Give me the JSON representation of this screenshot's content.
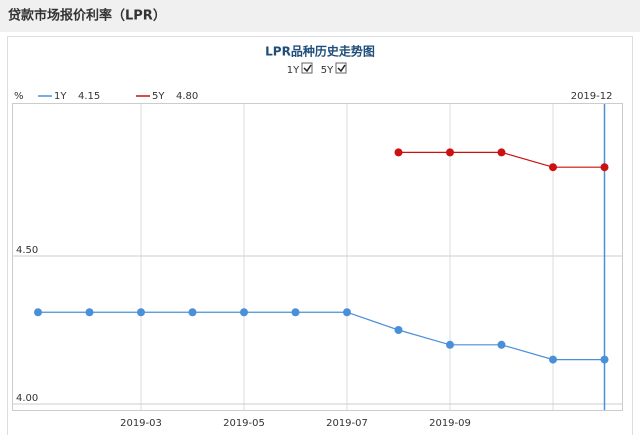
{
  "header": {
    "title": "贷款市场报价利率（LPR）"
  },
  "chart_data": {
    "type": "line",
    "title": "LPR品种历史走势图",
    "y_label": "%",
    "categories": [
      null,
      null,
      "2019-03",
      null,
      "2019-05",
      null,
      "2019-07",
      null,
      "2019-09",
      null,
      null,
      null
    ],
    "cursor_label": "2019-12",
    "series": [
      {
        "name": "1Y",
        "color": "#4a90d9",
        "values": [
          4.31,
          4.31,
          4.31,
          4.31,
          4.31,
          4.31,
          4.31,
          4.25,
          4.2,
          4.2,
          4.15,
          4.15
        ],
        "value_labels": [
          null,
          null,
          null,
          null,
          null,
          null,
          null,
          null,
          null,
          null,
          null,
          "4.15"
        ]
      },
      {
        "name": "5Y",
        "color": "#cc1111",
        "values": [
          null,
          null,
          null,
          null,
          null,
          null,
          null,
          4.85,
          4.85,
          4.85,
          4.8,
          4.8
        ],
        "value_labels": [
          null,
          null,
          null,
          null,
          null,
          null,
          null,
          null,
          null,
          null,
          null,
          "4.80"
        ]
      }
    ],
    "ylim": [
      4.0,
      5.0
    ],
    "yticks": [
      {
        "value": 4.0,
        "label": "4.00"
      },
      {
        "value": 4.5,
        "label": "4.50"
      }
    ],
    "grid": true
  }
}
